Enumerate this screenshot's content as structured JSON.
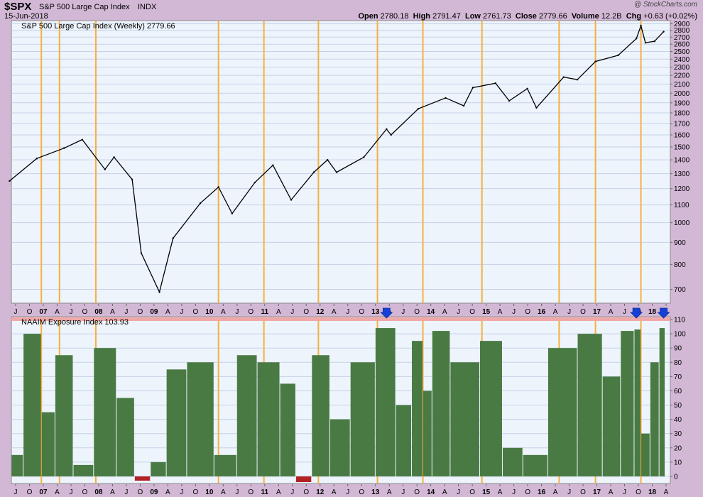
{
  "header": {
    "symbol": "$SPX",
    "name": "S&P 500 Large Cap Index",
    "exchange": "INDX",
    "date": "15-Jun-2018",
    "watermark": "@ StockCharts.com",
    "open_label": "Open",
    "open": "2780.18",
    "high_label": "High",
    "high": "2791.47",
    "low_label": "Low",
    "low": "2761.73",
    "close_label": "Close",
    "close": "2779.66",
    "volume_label": "Volume",
    "volume": "12.2B",
    "chg_label": "Chg",
    "chg": "+0.63 (+0.02%)"
  },
  "colors": {
    "page_bg": "#d3b8d6",
    "panel_bg": "#eef4fc",
    "grid": "#c4d2e6",
    "orange_line": "#f5b041",
    "price_line": "#000000",
    "bar_fill": "#4a7a43",
    "negative_bar": "#b22222",
    "threshold_band": "#f0a7a7",
    "arrow": "#1540d8"
  },
  "chart_data": [
    {
      "type": "line",
      "title": "S&P 500 Large Cap Index (Weekly) 2779.66",
      "legend_placement": "top-left",
      "y_scale": "log",
      "ylim": [
        650,
        2950
      ],
      "y_ticks": [
        700,
        800,
        900,
        1000,
        1100,
        1200,
        1300,
        1400,
        1500,
        1600,
        1700,
        1800,
        1900,
        2000,
        2100,
        2200,
        2300,
        2400,
        2500,
        2600,
        2700,
        2800,
        2900
      ],
      "x": [
        "2006-06",
        "2006-12",
        "2007-06",
        "2007-10",
        "2008-03",
        "2008-05",
        "2008-09",
        "2008-11",
        "2009-03",
        "2009-06",
        "2009-12",
        "2010-04",
        "2010-07",
        "2010-12",
        "2011-04",
        "2011-08",
        "2012-01",
        "2012-04",
        "2012-06",
        "2012-12",
        "2013-05",
        "2013-06",
        "2013-12",
        "2014-06",
        "2014-10",
        "2014-12",
        "2015-05",
        "2015-08",
        "2015-12",
        "2016-02",
        "2016-08",
        "2016-11",
        "2017-03",
        "2017-08",
        "2017-12",
        "2018-01",
        "2018-02",
        "2018-04",
        "2018-06"
      ],
      "series": [
        {
          "values": [
            1250,
            1410,
            1490,
            1560,
            1330,
            1420,
            1260,
            850,
            690,
            920,
            1110,
            1210,
            1050,
            1240,
            1360,
            1130,
            1310,
            1400,
            1310,
            1420,
            1650,
            1600,
            1840,
            1950,
            1870,
            2060,
            2110,
            1920,
            2050,
            1850,
            2180,
            2150,
            2370,
            2450,
            2680,
            2870,
            2620,
            2640,
            2780
          ]
        }
      ]
    },
    {
      "type": "bar",
      "title": "NAAIM Exposure Index 103.93",
      "legend_placement": "top-left",
      "ylim": [
        -5,
        112
      ],
      "y_ticks": [
        0,
        10,
        20,
        30,
        40,
        50,
        60,
        70,
        80,
        90,
        100,
        110
      ],
      "threshold": 110,
      "x": [
        "2006-06",
        "2006-12",
        "2007-02",
        "2007-06",
        "2007-10",
        "2008-03",
        "2008-08",
        "2008-11",
        "2009-03",
        "2009-06",
        "2009-12",
        "2010-06",
        "2010-10",
        "2011-03",
        "2011-08",
        "2011-10",
        "2012-03",
        "2012-06",
        "2012-12",
        "2013-05",
        "2013-09",
        "2013-12",
        "2014-02",
        "2014-04",
        "2014-10",
        "2015-05",
        "2015-08",
        "2016-02",
        "2016-07",
        "2017-03",
        "2017-06",
        "2017-11",
        "2017-12",
        "2018-02",
        "2018-04",
        "2018-06"
      ],
      "values": [
        15,
        100,
        45,
        85,
        8,
        90,
        55,
        -3,
        10,
        75,
        80,
        15,
        85,
        80,
        65,
        -4,
        85,
        40,
        80,
        104,
        50,
        95,
        60,
        102,
        80,
        95,
        20,
        15,
        90,
        100,
        70,
        102,
        103,
        30,
        80,
        104
      ],
      "markers": [
        {
          "type": "down-arrow",
          "x": "2013-05"
        },
        {
          "type": "down-arrow",
          "x": "2017-12"
        },
        {
          "type": "down-arrow",
          "x": "2018-06"
        }
      ]
    }
  ],
  "x_axis": {
    "labels": [
      "J",
      "O",
      "07",
      "A",
      "J",
      "O",
      "08",
      "A",
      "J",
      "O",
      "09",
      "A",
      "J",
      "O",
      "10",
      "A",
      "J",
      "O",
      "11",
      "A",
      "J",
      "O",
      "12",
      "A",
      "J",
      "O",
      "13",
      "A",
      "J",
      "O",
      "14",
      "A",
      "J",
      "O",
      "15",
      "A",
      "J",
      "O",
      "16",
      "A",
      "J",
      "O",
      "17",
      "A",
      "J",
      "O",
      "18",
      "A"
    ]
  },
  "vertical_markers": [
    "2007-01",
    "2007-05",
    "2008-01",
    "2010-04",
    "2011-02",
    "2012-02",
    "2013-03",
    "2014-01",
    "2015-02",
    "2016-07",
    "2017-03",
    "2018-01"
  ]
}
